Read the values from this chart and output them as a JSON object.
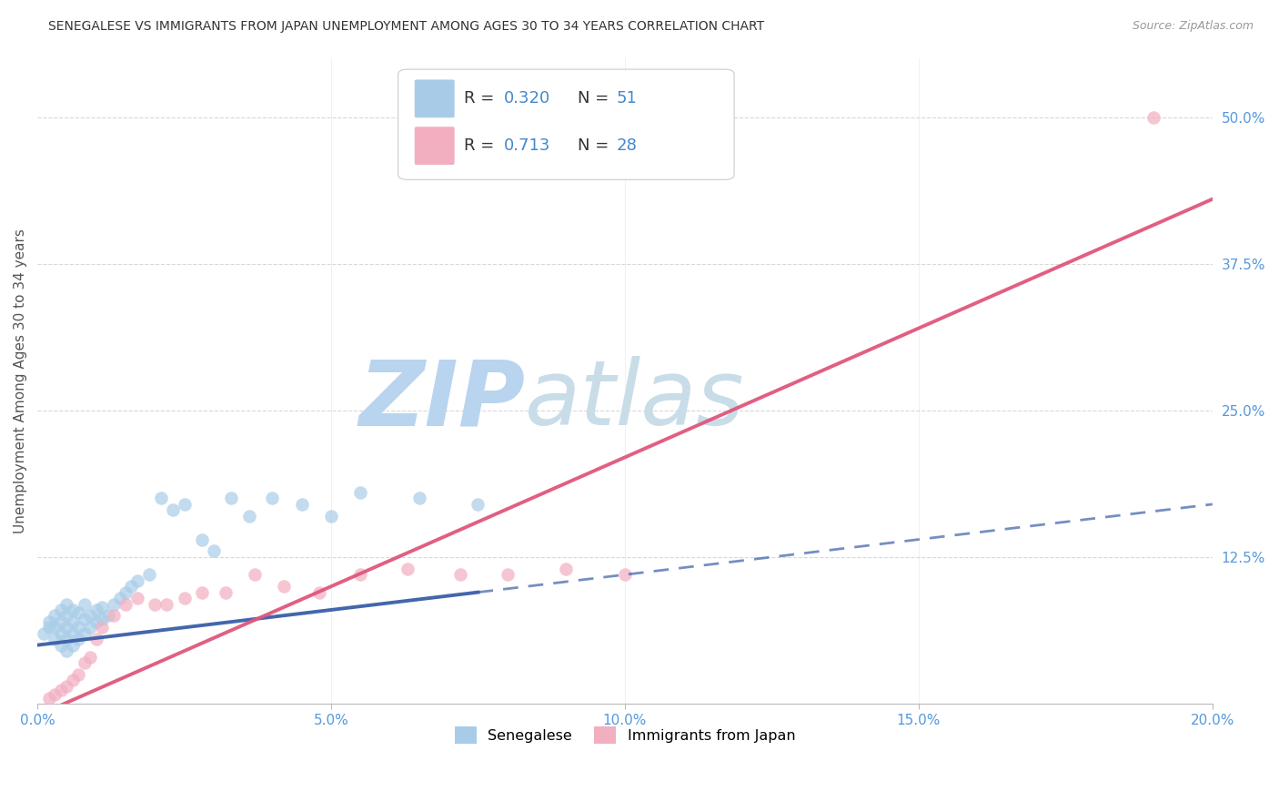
{
  "title": "SENEGALESE VS IMMIGRANTS FROM JAPAN UNEMPLOYMENT AMONG AGES 30 TO 34 YEARS CORRELATION CHART",
  "source": "Source: ZipAtlas.com",
  "ylabel": "Unemployment Among Ages 30 to 34 years",
  "xlim": [
    0.0,
    0.2
  ],
  "ylim": [
    0.0,
    0.55
  ],
  "xticks": [
    0.0,
    0.05,
    0.1,
    0.15,
    0.2
  ],
  "xtick_labels": [
    "0.0%",
    "5.0%",
    "10.0%",
    "15.0%",
    "20.0%"
  ],
  "yticks": [
    0.0,
    0.125,
    0.25,
    0.375,
    0.5
  ],
  "ytick_labels": [
    "",
    "12.5%",
    "25.0%",
    "37.5%",
    "50.0%"
  ],
  "series1_name": "Senegalese",
  "series1_R": 0.32,
  "series1_N": 51,
  "series1_color": "#a8cce8",
  "series1_line_color": "#3a5ea8",
  "series2_name": "Immigrants from Japan",
  "series2_R": 0.713,
  "series2_N": 28,
  "series2_color": "#f2afc0",
  "series2_line_color": "#e0567a",
  "watermark": "ZIPatlas",
  "watermark_color": "#d5e8f5",
  "background_color": "#ffffff",
  "grid_color": "#d8d8d8",
  "senegalese_x": [
    0.001,
    0.002,
    0.002,
    0.003,
    0.003,
    0.003,
    0.004,
    0.004,
    0.004,
    0.004,
    0.005,
    0.005,
    0.005,
    0.005,
    0.005,
    0.006,
    0.006,
    0.006,
    0.006,
    0.007,
    0.007,
    0.007,
    0.008,
    0.008,
    0.008,
    0.009,
    0.009,
    0.01,
    0.01,
    0.011,
    0.011,
    0.012,
    0.013,
    0.014,
    0.015,
    0.016,
    0.017,
    0.019,
    0.021,
    0.023,
    0.025,
    0.028,
    0.03,
    0.033,
    0.036,
    0.04,
    0.045,
    0.05,
    0.055,
    0.065,
    0.075
  ],
  "senegalese_y": [
    0.06,
    0.065,
    0.07,
    0.055,
    0.065,
    0.075,
    0.05,
    0.06,
    0.07,
    0.08,
    0.045,
    0.055,
    0.065,
    0.075,
    0.085,
    0.05,
    0.06,
    0.07,
    0.08,
    0.055,
    0.065,
    0.078,
    0.06,
    0.072,
    0.085,
    0.065,
    0.075,
    0.07,
    0.08,
    0.072,
    0.082,
    0.075,
    0.085,
    0.09,
    0.095,
    0.1,
    0.105,
    0.11,
    0.175,
    0.165,
    0.17,
    0.14,
    0.13,
    0.175,
    0.16,
    0.175,
    0.17,
    0.16,
    0.18,
    0.175,
    0.17
  ],
  "japan_x": [
    0.002,
    0.003,
    0.004,
    0.005,
    0.006,
    0.007,
    0.008,
    0.009,
    0.01,
    0.011,
    0.013,
    0.015,
    0.017,
    0.02,
    0.022,
    0.025,
    0.028,
    0.032,
    0.037,
    0.042,
    0.048,
    0.055,
    0.063,
    0.072,
    0.08,
    0.09,
    0.1,
    0.19
  ],
  "japan_y": [
    0.005,
    0.008,
    0.012,
    0.015,
    0.02,
    0.025,
    0.035,
    0.04,
    0.055,
    0.065,
    0.075,
    0.085,
    0.09,
    0.085,
    0.085,
    0.09,
    0.095,
    0.095,
    0.11,
    0.1,
    0.095,
    0.11,
    0.115,
    0.11,
    0.11,
    0.115,
    0.11,
    0.5
  ],
  "trendline1_x0": 0.0,
  "trendline1_x1": 0.2,
  "trendline1_y0": 0.05,
  "trendline1_y1": 0.17,
  "trendline2_x0": 0.0,
  "trendline2_x1": 0.2,
  "trendline2_y0": -0.01,
  "trendline2_y1": 0.43
}
